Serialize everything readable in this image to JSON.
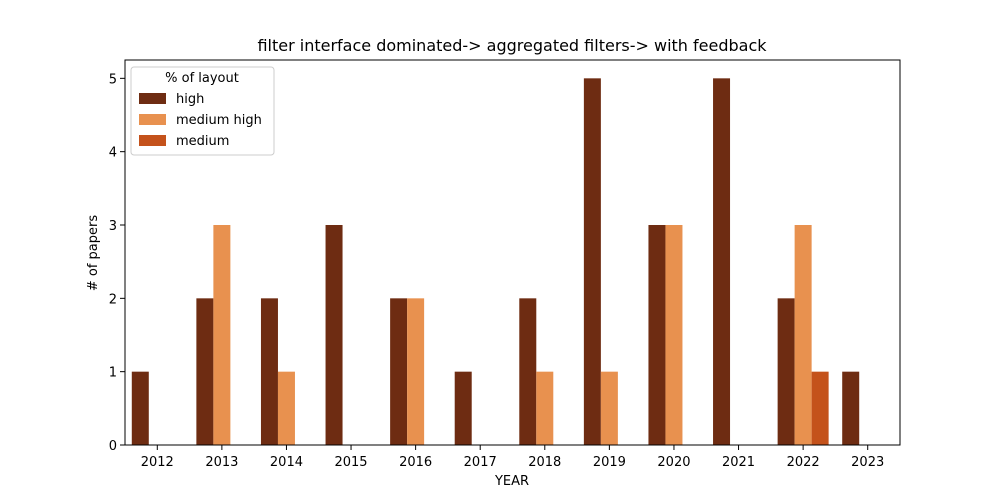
{
  "chart_data": {
    "type": "bar",
    "title": "filter interface dominated-> aggregated filters-> with feedback",
    "xlabel": "YEAR",
    "ylabel": "# of papers",
    "categories": [
      "2012",
      "2013",
      "2014",
      "2015",
      "2016",
      "2017",
      "2018",
      "2019",
      "2020",
      "2021",
      "2022",
      "2023"
    ],
    "ylim": [
      0,
      5.25
    ],
    "yticks": [
      0,
      1,
      2,
      3,
      4,
      5
    ],
    "grid": false,
    "legend": {
      "title": "% of layout",
      "placement": "top-left"
    },
    "series": [
      {
        "name": "high",
        "color": "#6e2c12",
        "values": [
          1,
          2,
          2,
          3,
          2,
          1,
          2,
          5,
          3,
          5,
          2,
          1
        ]
      },
      {
        "name": "medium high",
        "color": "#e8914f",
        "values": [
          0,
          3,
          1,
          0,
          2,
          0,
          1,
          1,
          3,
          0,
          3,
          0
        ]
      },
      {
        "name": "medium",
        "color": "#c4521b",
        "values": [
          0,
          0,
          0,
          0,
          0,
          0,
          0,
          0,
          0,
          0,
          1,
          0
        ]
      }
    ]
  }
}
